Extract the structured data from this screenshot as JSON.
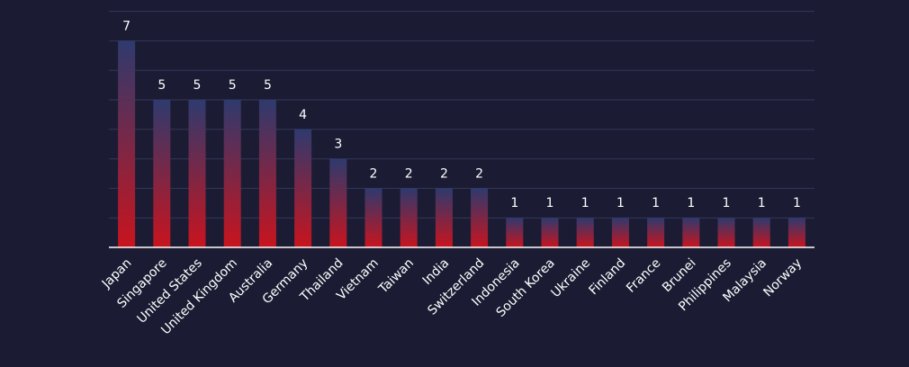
{
  "chart_data": {
    "type": "bar",
    "categories": [
      "Japan",
      "Singapore",
      "United States",
      "United Kingdom",
      "Australia",
      "Germany",
      "Thailand",
      "Vietnam",
      "Taiwan",
      "India",
      "Switzerland",
      "Indonesia",
      "South Korea",
      "Ukraine",
      "Finland",
      "France",
      "Brunei",
      "Philippines",
      "Malaysia",
      "Norway"
    ],
    "values": [
      7,
      5,
      5,
      5,
      5,
      4,
      3,
      2,
      2,
      2,
      2,
      1,
      1,
      1,
      1,
      1,
      1,
      1,
      1,
      1
    ],
    "ylim": [
      0,
      8
    ],
    "grid": true,
    "colors": {
      "background": "#1b1c33",
      "bar_top": "#2e3a6e",
      "bar_bottom": "#c8141e",
      "grid": "#34375a",
      "text": "#ffffff"
    }
  }
}
